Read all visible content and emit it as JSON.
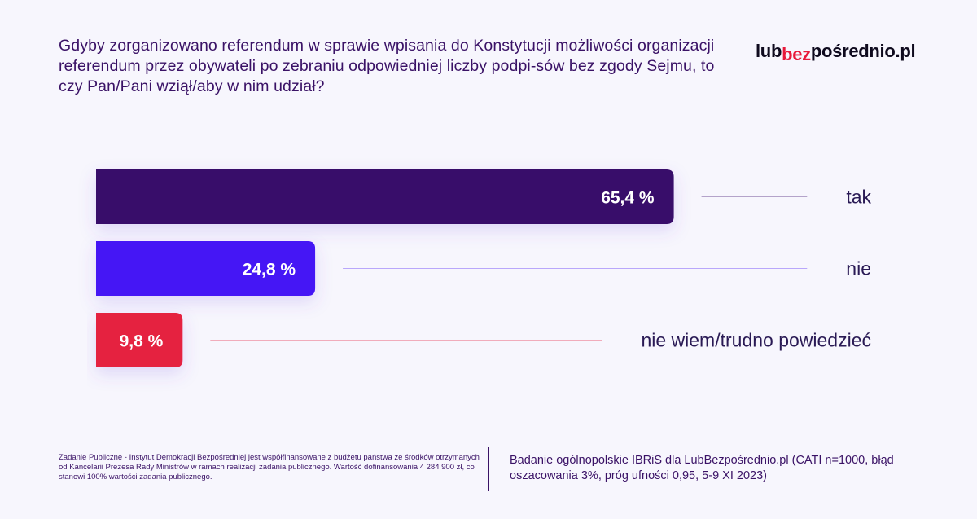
{
  "question": "Gdyby zorganizowano referendum w sprawie wpisania do Konstytucji możliwości organizacji referendum przez obywateli po zebraniu odpowiedniej liczby podpi-sów bez zgody Sejmu, to czy Pan/Pani wziął/aby w nim udział?",
  "logo": {
    "part1": "lub",
    "part2": "bez",
    "part3": "pośrednio.pl"
  },
  "chart_data": {
    "type": "bar",
    "orientation": "horizontal",
    "categories": [
      "tak",
      "nie",
      "nie wiem/trudno powiedzieć"
    ],
    "values": [
      65.4,
      24.8,
      9.8
    ],
    "value_labels": [
      "65,4 %",
      "24,8 %",
      "9,8 %"
    ],
    "colors": [
      "#370a6b",
      "#4514f5",
      "#e5213f"
    ],
    "xlim": [
      0,
      100
    ]
  },
  "footer": {
    "left": "Zadanie Publiczne - Instytut Demokracji Bezpośredniej jest współfinansowane z budżetu państwa ze środków otrzymanych od Kancelarii Prezesa Rady Ministrów w ramach realizacji zadania publicznego. Wartość dofinansowania 4 284 900 zł, co stanowi 100% wartości zadania publicznego.",
    "right": "Badanie ogólnopolskie IBRiS dla LubBezpośrednio.pl (CATI n=1000, błąd oszacowania 3%, próg ufności 0,95, 5-9 XI 2023)"
  }
}
